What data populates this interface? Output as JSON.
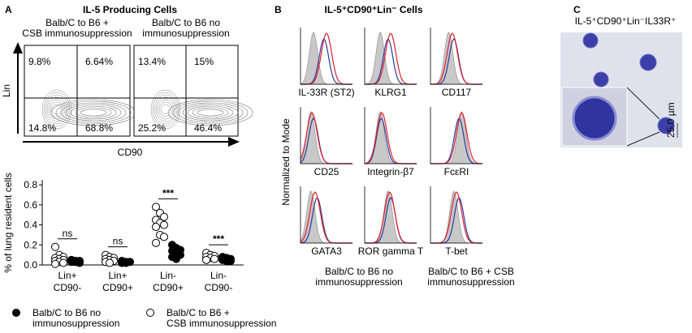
{
  "panel_a": {
    "letter": "A",
    "title": "IL-5 Producing Cells",
    "flow_plots": [
      {
        "header": "Balb/C to B6 +\nCSB immunosuppression",
        "quadrants": [
          "9.8%",
          "6.64%",
          "14.8%",
          "68.8%"
        ]
      },
      {
        "header": "Balb/C to B6 no\nimmunosuppression",
        "quadrants": [
          "13.4%",
          "15%",
          "25.2%",
          "46.4%"
        ]
      }
    ],
    "y_axis_label": "Lin",
    "x_axis_label": "CD90"
  },
  "chart_data": {
    "type": "dot",
    "y_axis_label": "% of lung resident cells",
    "categories": [
      "Lin+\nCD90-",
      "Lin+\nCD90+",
      "Lin-\nCD90+",
      "Lin-\nCD90-"
    ],
    "series": [
      {
        "name": "Balb/C to B6 +\nCSB immunosuppression",
        "color": "#ffffff",
        "values": [
          [
            0.18,
            0.1,
            0.08,
            0.07,
            0.06,
            0.05,
            0.04,
            0.03,
            0.02,
            0.01
          ],
          [
            0.1,
            0.08,
            0.07,
            0.06,
            0.05,
            0.04,
            0.03,
            0.02
          ],
          [
            0.58,
            0.52,
            0.48,
            0.45,
            0.42,
            0.4,
            0.38,
            0.3,
            0.28,
            0.22
          ],
          [
            0.12,
            0.1,
            0.09,
            0.08,
            0.07,
            0.06,
            0.05
          ]
        ]
      },
      {
        "name": "Balb/C to B6 no\nimmunosuppression",
        "color": "#000000",
        "values": [
          [
            0.05,
            0.04,
            0.04,
            0.03,
            0.03,
            0.02,
            0.05,
            0.03
          ],
          [
            0.04,
            0.03,
            0.03,
            0.02,
            0.02
          ],
          [
            0.2,
            0.17,
            0.15,
            0.14,
            0.12,
            0.1,
            0.08,
            0.06
          ],
          [
            0.08,
            0.07,
            0.06,
            0.05,
            0.04,
            0.04
          ]
        ]
      }
    ],
    "annotations": [
      "ns",
      "ns",
      "***",
      "***"
    ],
    "ylim": [
      0,
      0.85
    ],
    "yticks": [
      {
        "value": 0,
        "label": "0.0"
      },
      0.2,
      0.4,
      0.6,
      0.8
    ]
  },
  "panel_b": {
    "letter": "B",
    "title": "IL-5⁺CD90⁺Lin⁻ Cells",
    "y_axis_label": "Normalized to Mode",
    "markers": [
      "IL-33R (ST2)",
      "KLRG1",
      "CD117",
      "CD25",
      "Integrin-β7",
      "FcεRI",
      "GATA3",
      "ROR gamma T",
      "T-bet"
    ],
    "legend": [
      {
        "label": "Balb/C to B6 no\nimmunosuppression",
        "color": "#2b3a9c"
      },
      {
        "label": "Balb/C to B6 + CSB\nimmunosuppression",
        "color": "#e0202a"
      }
    ]
  },
  "panel_c": {
    "letter": "C",
    "title": "IL-5⁺CD90⁺Lin⁻IL33R⁺",
    "scale_bar": "25.0 µm"
  }
}
